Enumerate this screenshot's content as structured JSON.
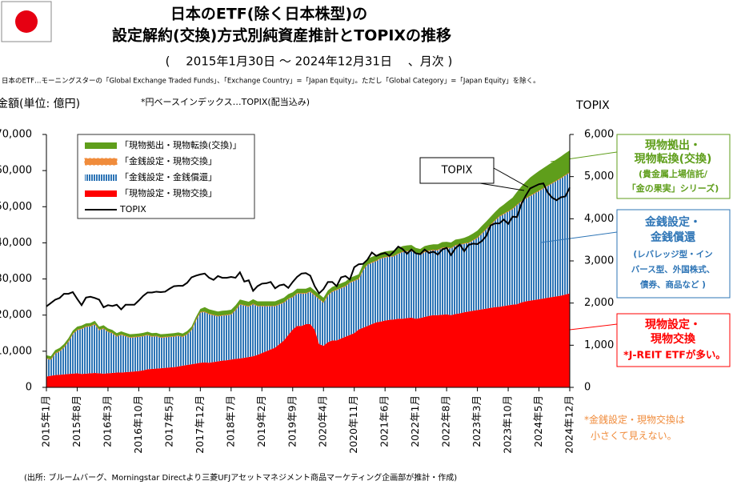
{
  "chart_data": {
    "type": "area",
    "title": [
      "日本のETF(除く日本株型)の",
      "設定解約(交換)方式別純資産推計とTOPIXの推移"
    ],
    "subtitle": "(　 2015年1月30日 ～ 2024年12月31日 　、月次 )",
    "note": "日本のETF…モーニングスターの「Global Exchange Traded Funds」、「Exchange Country」=「Japan Equity」。ただし「Global Category」=「Japan Equity」を除く。",
    "ylabel": "金額(単位: 億円)",
    "index_note": "*円ベースインデックス…TOPIX(配当込み)",
    "y2label": "TOPIX",
    "source": "(出所: ブルームバーグ、Morningstar Directより三菱UFJアセットマネジメント商品マーケティング企画部が推計・作成)",
    "ylim": [
      0,
      70000
    ],
    "yticks": [
      0,
      {
        "value": 10000,
        "label": "10,000"
      },
      {
        "value": 20000,
        "label": "20,000"
      },
      {
        "value": 30000,
        "label": "30,000"
      },
      {
        "value": 40000,
        "label": "40,000"
      },
      {
        "value": 50000,
        "label": "50,000"
      },
      {
        "value": 60000,
        "label": "60,000"
      },
      {
        "value": 70000,
        "label": "70,000"
      }
    ],
    "y2lim": [
      0,
      6000
    ],
    "y2ticks": [
      0,
      {
        "value": 1000,
        "label": "1,000"
      },
      {
        "value": 2000,
        "label": "2,000"
      },
      {
        "value": 3000,
        "label": "3,000"
      },
      {
        "value": 4000,
        "label": "4,000"
      },
      {
        "value": 5000,
        "label": "5,000"
      },
      {
        "value": 6000,
        "label": "6,000"
      }
    ],
    "stacked": true,
    "categories": [
      "2015年1月",
      null,
      null,
      null,
      null,
      null,
      null,
      "2015年8月",
      null,
      null,
      null,
      null,
      null,
      null,
      "2016年3月",
      null,
      null,
      null,
      null,
      null,
      null,
      "2016年10月",
      null,
      null,
      null,
      null,
      null,
      null,
      "2017年5月",
      null,
      null,
      null,
      null,
      null,
      null,
      "2017年12月",
      null,
      null,
      null,
      null,
      null,
      null,
      "2018年7月",
      null,
      null,
      null,
      null,
      null,
      null,
      "2019年2月",
      null,
      null,
      null,
      null,
      null,
      null,
      "2019年9月",
      null,
      null,
      null,
      null,
      null,
      null,
      "2020年4月",
      null,
      null,
      null,
      null,
      null,
      null,
      "2020年11月",
      null,
      null,
      null,
      null,
      null,
      null,
      "2021年6月",
      null,
      null,
      null,
      null,
      null,
      null,
      "2022年1月",
      null,
      null,
      null,
      null,
      null,
      null,
      "2022年8月",
      null,
      null,
      null,
      null,
      null,
      null,
      "2023年3月",
      null,
      null,
      null,
      null,
      null,
      null,
      "2023年10月",
      null,
      null,
      null,
      null,
      null,
      null,
      "2024年5月",
      null,
      null,
      null,
      null,
      null,
      null,
      "2024年12月"
    ],
    "series": [
      {
        "name": "「現物拠出・現物転換(交換)」",
        "color": "#5f9e1b",
        "style": "solid",
        "values": [
          800,
          800,
          800,
          800,
          800,
          800,
          800,
          800,
          800,
          800,
          800,
          800,
          800,
          800,
          800,
          800,
          800,
          800,
          800,
          800,
          800,
          800,
          800,
          800,
          800,
          800,
          800,
          800,
          800,
          800,
          800,
          800,
          800,
          800,
          800,
          800,
          1200,
          1200,
          1200,
          1200,
          1200,
          1200,
          1200,
          1200,
          1200,
          1200,
          1200,
          1200,
          1200,
          1200,
          1200,
          1200,
          1200,
          1200,
          1200,
          1200,
          1200,
          1200,
          1200,
          1200,
          1200,
          1200,
          1200,
          1200,
          1200,
          1200,
          1200,
          1200,
          1200,
          1200,
          1200,
          1200,
          1500,
          1500,
          1500,
          1500,
          1500,
          1500,
          1500,
          1500,
          1500,
          1500,
          1500,
          1500,
          1500,
          1500,
          1500,
          1500,
          1500,
          1500,
          1500,
          1500,
          1500,
          1500,
          1500,
          1500,
          1800,
          1800,
          1900,
          2000,
          2000,
          2100,
          2200,
          2300,
          2500,
          2800,
          3000,
          3500,
          4000,
          4500,
          5000,
          5200,
          5400,
          5500,
          5600,
          5700,
          5800,
          5900,
          6000,
          6000
        ]
      },
      {
        "name": "「金銭設定・現物交換」",
        "color": "#f08c3c",
        "style": "dashed",
        "values": [
          100,
          100,
          100,
          100,
          100,
          100,
          100,
          100,
          100,
          100,
          100,
          100,
          100,
          100,
          100,
          100,
          100,
          100,
          100,
          100,
          100,
          100,
          100,
          100,
          100,
          100,
          100,
          100,
          100,
          100,
          100,
          100,
          100,
          100,
          100,
          100,
          100,
          100,
          100,
          100,
          100,
          100,
          100,
          100,
          100,
          100,
          100,
          100,
          100,
          100,
          100,
          100,
          100,
          100,
          100,
          100,
          100,
          100,
          100,
          100,
          100,
          100,
          100,
          100,
          100,
          100,
          100,
          100,
          100,
          100,
          100,
          100,
          100,
          100,
          100,
          100,
          100,
          100,
          100,
          100,
          100,
          100,
          100,
          100,
          100,
          100,
          100,
          100,
          100,
          100,
          100,
          100,
          100,
          100,
          100,
          100,
          100,
          100,
          100,
          100,
          100,
          100,
          100,
          100,
          100,
          100,
          100,
          100,
          100,
          100,
          100,
          100,
          100,
          100,
          100,
          100,
          100,
          100,
          100,
          100
        ]
      },
      {
        "name": "「金銭設定・金銭償還」",
        "color": "#2e75b6",
        "style": "striped",
        "values": [
          5000,
          4500,
          6000,
          6500,
          7500,
          9000,
          11000,
          12000,
          12500,
          13000,
          13000,
          13500,
          12000,
          12500,
          11500,
          11000,
          10000,
          10500,
          10000,
          9500,
          9500,
          9500,
          9500,
          9500,
          9000,
          9000,
          8500,
          8500,
          8500,
          8500,
          8500,
          8000,
          8500,
          9500,
          12000,
          14000,
          14000,
          13500,
          13000,
          12500,
          12500,
          12500,
          12500,
          13500,
          15000,
          14500,
          14000,
          14500,
          13500,
          13000,
          12500,
          12000,
          11500,
          11000,
          10500,
          10000,
          9000,
          9000,
          9000,
          8500,
          9000,
          9500,
          12500,
          12000,
          13000,
          13500,
          14000,
          14000,
          14000,
          14500,
          14500,
          14000,
          16000,
          17000,
          17000,
          17000,
          17500,
          17500,
          17500,
          17500,
          18000,
          18500,
          18500,
          18500,
          18000,
          17500,
          18000,
          18000,
          18000,
          18000,
          18500,
          18500,
          18500,
          19000,
          19000,
          19000,
          19000,
          19500,
          20000,
          21000,
          22000,
          23000,
          24000,
          25000,
          25500,
          26000,
          26500,
          27500,
          28000,
          28500,
          29000,
          29500,
          30000,
          30500,
          31000,
          31500,
          32000,
          32500,
          33000,
          33500
        ]
      },
      {
        "name": "「現物設定・現物交換」",
        "color": "#ff0000",
        "style": "solid",
        "values": [
          3000,
          3200,
          3400,
          3500,
          3600,
          3700,
          3800,
          3900,
          3700,
          3800,
          3900,
          4000,
          3900,
          3800,
          3900,
          4000,
          4100,
          4100,
          4200,
          4300,
          4400,
          4500,
          4700,
          5000,
          5100,
          5200,
          5300,
          5400,
          5500,
          5600,
          5800,
          6000,
          6200,
          6400,
          6600,
          6800,
          6900,
          6800,
          7000,
          7200,
          7400,
          7500,
          7700,
          7900,
          8000,
          8200,
          8400,
          8600,
          9000,
          9500,
          10000,
          10500,
          11000,
          12000,
          13000,
          14500,
          16000,
          17000,
          17000,
          17500,
          17500,
          16000,
          12000,
          11500,
          12500,
          13000,
          13000,
          13500,
          14000,
          14500,
          15000,
          16000,
          16500,
          17000,
          17500,
          18000,
          18200,
          18500,
          18700,
          18800,
          19000,
          19000,
          19200,
          19300,
          19000,
          19200,
          19500,
          19800,
          20000,
          20000,
          20100,
          20200,
          20000,
          20300,
          20500,
          20800,
          21000,
          21200,
          21400,
          21600,
          21800,
          22000,
          22200,
          22300,
          22500,
          22700,
          22900,
          23000,
          23500,
          23800,
          24000,
          24200,
          24400,
          24600,
          24800,
          25000,
          25200,
          25400,
          25700,
          26000
        ]
      },
      {
        "name": "TOPIX",
        "color": "#000000",
        "type": "line",
        "axis": "y2",
        "values": [
          1920,
          2000,
          2080,
          2120,
          2220,
          2220,
          2260,
          2100,
          1950,
          2130,
          2150,
          2120,
          2080,
          1900,
          1950,
          1930,
          1960,
          1850,
          1960,
          1960,
          1960,
          2060,
          2170,
          2250,
          2250,
          2270,
          2260,
          2270,
          2340,
          2400,
          2410,
          2410,
          2480,
          2610,
          2650,
          2680,
          2700,
          2600,
          2550,
          2640,
          2600,
          2600,
          2620,
          2600,
          2730,
          2510,
          2540,
          2290,
          2400,
          2460,
          2470,
          2500,
          2350,
          2420,
          2440,
          2360,
          2500,
          2620,
          2700,
          2710,
          2650,
          2400,
          2230,
          2330,
          2500,
          2500,
          2400,
          2610,
          2640,
          2560,
          2850,
          2920,
          2930,
          3030,
          3200,
          3120,
          3160,
          3190,
          3120,
          3220,
          3340,
          3280,
          3170,
          3270,
          3180,
          3160,
          3270,
          3190,
          3220,
          3150,
          3270,
          3310,
          3140,
          3300,
          3390,
          3230,
          3380,
          3410,
          3400,
          3470,
          3590,
          3840,
          3890,
          3890,
          3980,
          3880,
          4050,
          4040,
          4350,
          4550,
          4720,
          4770,
          4820,
          4840,
          4620,
          4500,
          4440,
          4510,
          4530,
          4740
        ]
      }
    ],
    "annotations": [
      {
        "lines": [
          "TOPIX"
        ]
      },
      {
        "lines": [
          "現物拠出・",
          "現物転換(交換)",
          "(貴金属上場信託/",
          "「金の果実」シリーズ)"
        ]
      },
      {
        "lines": [
          "金銭設定・",
          "金銭償還",
          "(レバレッジ型・イン",
          "バース型、外国株式、",
          "債券、商品など )"
        ]
      },
      {
        "lines": [
          "現物設定・",
          "現物交換",
          "*J-REIT ETFが多い。"
        ]
      },
      {
        "lines": [
          "*金銭設定・現物交換は",
          "小さくて見えない。"
        ]
      }
    ]
  }
}
